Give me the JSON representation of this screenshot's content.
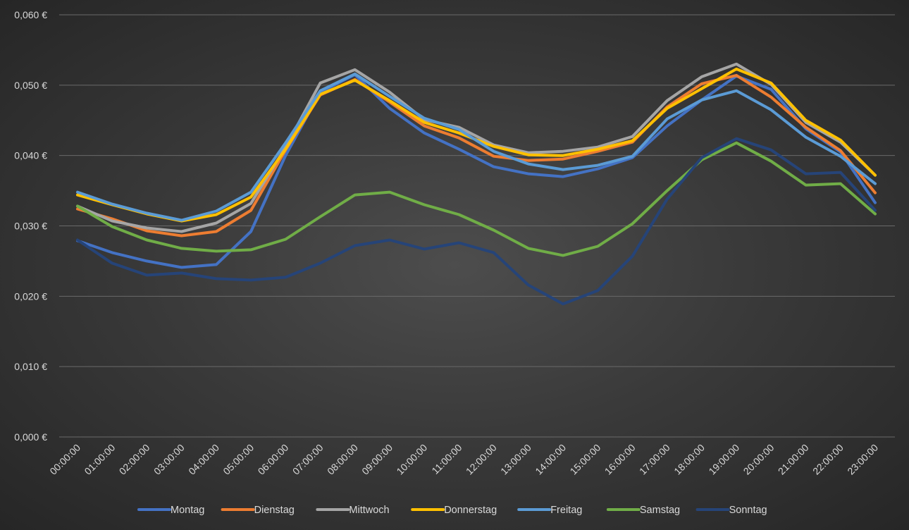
{
  "chart_data": {
    "type": "line",
    "title": "",
    "xlabel": "",
    "ylabel": "",
    "ylim": [
      0,
      0.06
    ],
    "ytick_values": [
      0,
      0.01,
      0.02,
      0.03,
      0.04,
      0.05,
      0.06
    ],
    "ytick_labels": [
      "0,000 €",
      "0,010 €",
      "0,020 €",
      "0,030 €",
      "0,040 €",
      "0,050 €",
      "0,060 €"
    ],
    "grid": true,
    "legend_position": "bottom",
    "categories": [
      "00:00:00",
      "01:00:00",
      "02:00:00",
      "03:00:00",
      "04:00:00",
      "05:00:00",
      "06:00:00",
      "07:00:00",
      "08:00:00",
      "09:00:00",
      "10:00:00",
      "11:00:00",
      "12:00:00",
      "13:00:00",
      "14:00:00",
      "15:00:00",
      "16:00:00",
      "17:00:00",
      "18:00:00",
      "19:00:00",
      "20:00:00",
      "21:00:00",
      "22:00:00",
      "23:00:00"
    ],
    "series": [
      {
        "name": "Montag",
        "color": "#4472C4",
        "values": [
          0.0279,
          0.0262,
          0.025,
          0.0241,
          0.0245,
          0.0292,
          0.04,
          0.049,
          0.0515,
          0.0467,
          0.0432,
          0.0409,
          0.0384,
          0.0374,
          0.037,
          0.0381,
          0.0397,
          0.0442,
          0.0479,
          0.0513,
          0.0494,
          0.0438,
          0.0405,
          0.0333
        ]
      },
      {
        "name": "Dienstag",
        "color": "#ED7D31",
        "values": [
          0.0324,
          0.031,
          0.0293,
          0.0286,
          0.0292,
          0.0322,
          0.0408,
          0.0486,
          0.0508,
          0.0476,
          0.0442,
          0.0425,
          0.0399,
          0.0393,
          0.0395,
          0.0406,
          0.0419,
          0.0469,
          0.0502,
          0.0514,
          0.0483,
          0.044,
          0.0407,
          0.0347
        ]
      },
      {
        "name": "Mittwoch",
        "color": "#A5A5A5",
        "values": [
          0.0328,
          0.0307,
          0.0297,
          0.0292,
          0.0304,
          0.0332,
          0.0412,
          0.0503,
          0.0522,
          0.049,
          0.0451,
          0.044,
          0.0415,
          0.0404,
          0.0406,
          0.0412,
          0.0427,
          0.0478,
          0.0512,
          0.053,
          0.0501,
          0.0447,
          0.0419,
          0.0372
        ]
      },
      {
        "name": "Donnerstag",
        "color": "#FFC000",
        "values": [
          0.0344,
          0.033,
          0.0317,
          0.0307,
          0.0316,
          0.0341,
          0.0409,
          0.0487,
          0.0507,
          0.0478,
          0.0447,
          0.0432,
          0.0413,
          0.0401,
          0.04,
          0.0409,
          0.0421,
          0.0467,
          0.0495,
          0.0523,
          0.0503,
          0.045,
          0.0422,
          0.0372
        ]
      },
      {
        "name": "Freitag",
        "color": "#5B9BD5",
        "values": [
          0.0348,
          0.0331,
          0.0318,
          0.0308,
          0.0321,
          0.0348,
          0.0418,
          0.0492,
          0.0516,
          0.0484,
          0.0453,
          0.0437,
          0.0406,
          0.0388,
          0.038,
          0.0386,
          0.0399,
          0.0452,
          0.0479,
          0.0492,
          0.0465,
          0.0426,
          0.0399,
          0.036
        ]
      },
      {
        "name": "Samstag",
        "color": "#70AD47",
        "values": [
          0.0328,
          0.0299,
          0.028,
          0.0268,
          0.0264,
          0.0266,
          0.0281,
          0.0313,
          0.0344,
          0.0348,
          0.033,
          0.0316,
          0.0294,
          0.0268,
          0.0258,
          0.0271,
          0.0303,
          0.035,
          0.0394,
          0.0418,
          0.0392,
          0.0358,
          0.036,
          0.0317
        ]
      },
      {
        "name": "Sonntag",
        "color": "#264478",
        "values": [
          0.028,
          0.0247,
          0.023,
          0.0233,
          0.0225,
          0.0223,
          0.0227,
          0.0247,
          0.0272,
          0.028,
          0.0267,
          0.0276,
          0.0262,
          0.0216,
          0.0189,
          0.0208,
          0.0257,
          0.0338,
          0.0397,
          0.0424,
          0.0408,
          0.0374,
          0.0376,
          0.0322
        ]
      }
    ]
  }
}
